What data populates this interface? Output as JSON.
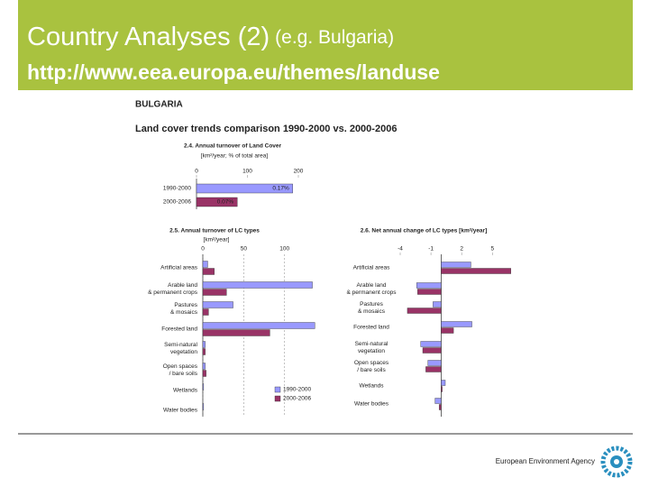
{
  "slide": {
    "title": "Country Analyses (2)",
    "title_note": "(e.g. Bulgaria)",
    "url": "http://www.eea.europa.eu/themes/landuse",
    "country": "BULGARIA",
    "heading": "Land cover trends comparison 1990-2000 vs. 2000-2006",
    "footer": "European Environment Agency"
  },
  "chart_data": [
    {
      "type": "hbar",
      "title": "2.4. Annual turnover of Land Cover",
      "subtitle": "[km²/year; % of total area]",
      "categories": [
        "1990-2000",
        "2000-2006"
      ],
      "values": [
        189,
        80
      ],
      "bar_annotations": [
        "0.17%",
        "0.07%"
      ],
      "colors": [
        "#9999ff",
        "#993366"
      ],
      "xlim": [
        0,
        200
      ],
      "xticks": [
        0,
        100,
        200
      ]
    },
    {
      "type": "grouped-hbar",
      "title": "2.5. Annual turnover of LC types",
      "subtitle": "[km²/year]",
      "categories": [
        "Artificial areas",
        "Arable land\n& permanent crops",
        "Pastures\n& mosaics",
        "Forested land",
        "Semi-natural\nvegetation",
        "Open spaces\n/ bare soils",
        "Wetlands",
        "Water bodies"
      ],
      "series": [
        {
          "name": "1990-2000",
          "color": "#9999ff",
          "values": [
            6,
            134,
            37,
            137,
            3,
            3,
            1,
            1
          ]
        },
        {
          "name": "2000-2006",
          "color": "#993366",
          "values": [
            14,
            29,
            7,
            82,
            3,
            4,
            0,
            0
          ]
        }
      ],
      "xlim": [
        0,
        140
      ],
      "xticks": [
        0,
        50,
        100
      ],
      "grid": true,
      "legend": "lower-right"
    },
    {
      "type": "grouped-hbar",
      "title": "2.6. Net annual change of LC types [km²/year]",
      "categories": [
        "Artificial areas",
        "Arable land\n& permanent crops",
        "Pastures\n& mosaics",
        "Forested land",
        "Semi-natural\nvegetation",
        "Open spaces\n/ bare soils",
        "Wetlands",
        "Water bodies"
      ],
      "series": [
        {
          "name": "1990-2000",
          "color": "#9999ff",
          "values": [
            2.9,
            -2.4,
            -0.8,
            3.0,
            -2.0,
            -1.3,
            0.4,
            -0.6
          ]
        },
        {
          "name": "2000-2006",
          "color": "#993366",
          "values": [
            6.8,
            -2.3,
            -3.3,
            1.2,
            -1.8,
            -1.5,
            0.1,
            -0.2
          ]
        }
      ],
      "xlim": [
        -4,
        7
      ],
      "xticks": [
        -4,
        -1,
        2,
        5
      ],
      "grid": false
    }
  ]
}
